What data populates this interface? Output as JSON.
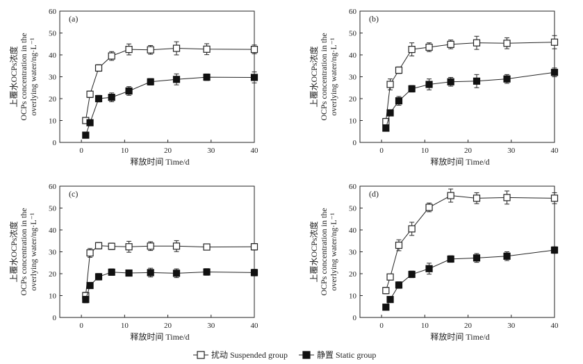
{
  "chart_data": [
    {
      "type": "line",
      "panel_label": "(a)",
      "xlabel": "释放时间 Time/d",
      "ylabel_lines": [
        "上覆水OCPs浓度",
        "OCPs concentration in the",
        "overlying water/ng·L⁻¹"
      ],
      "xlim": [
        -5,
        40
      ],
      "ylim": [
        0,
        60
      ],
      "xticks": [
        0,
        10,
        20,
        30,
        40
      ],
      "yticks": [
        0,
        10,
        20,
        30,
        40,
        50,
        60
      ],
      "series": [
        {
          "name": "扰动 Suspended group",
          "marker": "open-square",
          "x": [
            1,
            2,
            4,
            7,
            11,
            16,
            22,
            29,
            40
          ],
          "y": [
            10,
            22,
            34,
            39.5,
            42.5,
            42.3,
            43,
            42.6,
            42.5
          ],
          "err": [
            1,
            1.5,
            1.5,
            2,
            2.5,
            2,
            3,
            2.5,
            2
          ]
        },
        {
          "name": "静置 Static group",
          "marker": "filled-square",
          "x": [
            1,
            2,
            4,
            7,
            11,
            16,
            22,
            29,
            40
          ],
          "y": [
            3.3,
            9,
            20,
            20.6,
            23.5,
            27.7,
            28.8,
            29.8,
            29.7
          ],
          "err": [
            0.5,
            1,
            1.5,
            2,
            2,
            1.5,
            2.5,
            1.5,
            2.5
          ]
        }
      ]
    },
    {
      "type": "line",
      "panel_label": "(b)",
      "xlabel": "释放时间 Time/d",
      "ylabel_lines": [
        "上覆水OCPs浓度",
        "OCPs concentration in the",
        "overlying water/ng·L⁻¹"
      ],
      "xlim": [
        -5,
        40
      ],
      "ylim": [
        0,
        60
      ],
      "xticks": [
        0,
        10,
        20,
        30,
        40
      ],
      "yticks": [
        0,
        10,
        20,
        30,
        40,
        50,
        60
      ],
      "series": [
        {
          "name": "扰动 Suspended group",
          "marker": "open-square",
          "x": [
            1,
            2,
            4,
            7,
            11,
            16,
            22,
            29,
            40
          ],
          "y": [
            9.5,
            26.5,
            33,
            42.5,
            43.5,
            44.8,
            45.5,
            45.3,
            45.8
          ],
          "err": [
            1.5,
            2.5,
            1.5,
            3,
            2,
            2,
            3,
            2.5,
            3
          ]
        },
        {
          "name": "静置 Static group",
          "marker": "filled-square",
          "x": [
            1,
            2,
            4,
            7,
            11,
            16,
            22,
            29,
            40
          ],
          "y": [
            6.5,
            13.5,
            19,
            24.5,
            26.5,
            27.7,
            28,
            29,
            32
          ],
          "err": [
            1,
            1,
            2,
            1.5,
            2.5,
            2,
            3,
            2,
            2
          ]
        }
      ]
    },
    {
      "type": "line",
      "panel_label": "(c)",
      "xlabel": "释放时间 Time/d",
      "ylabel_lines": [
        "上覆水OCPs浓度",
        "OCPs concentration in the",
        "overlying water/ng·L⁻¹"
      ],
      "xlim": [
        -5,
        40
      ],
      "ylim": [
        0,
        60
      ],
      "xticks": [
        0,
        10,
        20,
        30,
        40
      ],
      "yticks": [
        0,
        10,
        20,
        30,
        40,
        50,
        60
      ],
      "series": [
        {
          "name": "扰动 Suspended group",
          "marker": "open-square",
          "x": [
            1,
            2,
            4,
            7,
            11,
            16,
            22,
            29,
            40
          ],
          "y": [
            10,
            29.5,
            32.8,
            32.5,
            32.3,
            32.6,
            32.6,
            32.2,
            32.3
          ],
          "err": [
            1.5,
            2,
            1.5,
            1.5,
            2.5,
            2,
            2.5,
            1,
            1.5
          ]
        },
        {
          "name": "静置 Static group",
          "marker": "filled-square",
          "x": [
            1,
            2,
            4,
            7,
            11,
            16,
            22,
            29,
            40
          ],
          "y": [
            8.2,
            14.6,
            18.6,
            20.7,
            20.3,
            20.5,
            20.2,
            20.8,
            20.5
          ],
          "err": [
            1.5,
            1,
            1.5,
            1.5,
            1,
            2,
            2,
            1.5,
            1.5
          ]
        }
      ]
    },
    {
      "type": "line",
      "panel_label": "(d)",
      "xlabel": "释放时间 Time/d",
      "ylabel_lines": [
        "上覆水OCPs浓度",
        "OCPs concentration in the",
        "overlying water/ng·L⁻¹"
      ],
      "xlim": [
        -5,
        40
      ],
      "ylim": [
        0,
        60
      ],
      "xticks": [
        0,
        10,
        20,
        30,
        40
      ],
      "yticks": [
        0,
        10,
        20,
        30,
        40,
        50,
        60
      ],
      "series": [
        {
          "name": "扰动 Suspended group",
          "marker": "open-square",
          "x": [
            1,
            2,
            4,
            7,
            11,
            16,
            22,
            29,
            40
          ],
          "y": [
            12.3,
            18.5,
            33,
            40.5,
            50.3,
            55.7,
            54.5,
            54.8,
            54.5
          ],
          "err": [
            1.5,
            1,
            2.5,
            3,
            2,
            3,
            2.5,
            3,
            2.5
          ]
        },
        {
          "name": "静置 Static group",
          "marker": "filled-square",
          "x": [
            1,
            2,
            4,
            7,
            11,
            16,
            22,
            29,
            40
          ],
          "y": [
            4.7,
            8.2,
            14.8,
            19.7,
            22.3,
            26.7,
            27.2,
            28,
            30.8
          ],
          "err": [
            0.5,
            1,
            1.5,
            1.5,
            2.5,
            1.5,
            2,
            2,
            1.5
          ]
        }
      ]
    }
  ],
  "legend": {
    "items": [
      {
        "label": "扰动 Suspended group",
        "marker": "open-square"
      },
      {
        "label": "静置 Static group",
        "marker": "filled-square"
      }
    ]
  },
  "colors": {
    "line": "#222222",
    "open_fill": "#ffffff",
    "filled": "#111111"
  }
}
